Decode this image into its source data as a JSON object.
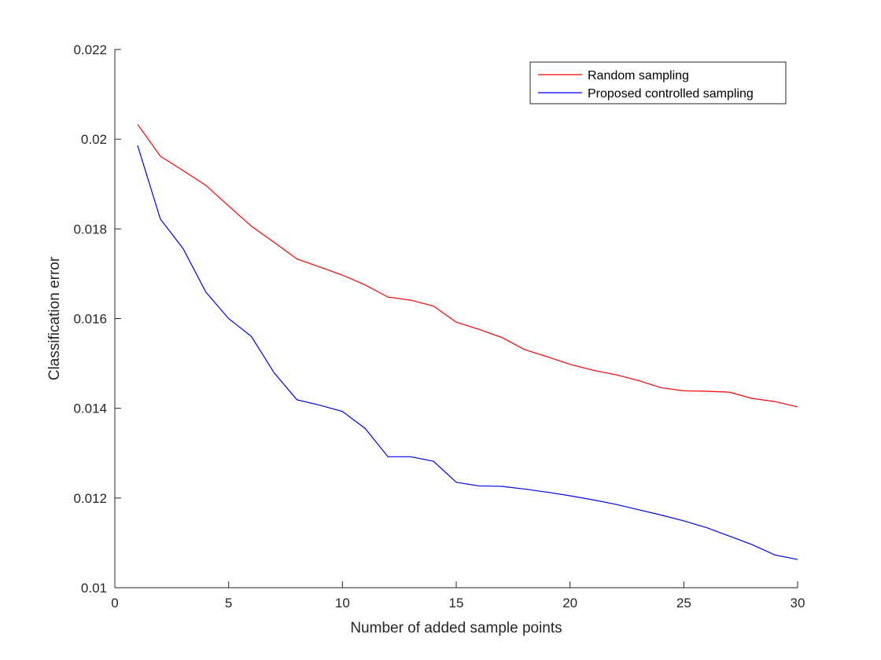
{
  "chart_data": {
    "type": "line",
    "title": "",
    "xlabel": "Number of added sample points",
    "ylabel": "Classification error",
    "xlim": [
      0,
      30
    ],
    "ylim": [
      0.01,
      0.022
    ],
    "xticks": [
      0,
      5,
      10,
      15,
      20,
      25,
      30
    ],
    "xtick_labels": [
      "0",
      "5",
      "10",
      "15",
      "20",
      "25",
      "30"
    ],
    "yticks": [
      0.01,
      0.012,
      0.014,
      0.016,
      0.018,
      0.02,
      0.022
    ],
    "ytick_labels": [
      "0.01",
      "0.012",
      "0.014",
      "0.016",
      "0.018",
      "0.02",
      "0.022"
    ],
    "grid": false,
    "legend_position": "top-right",
    "x": [
      1,
      2,
      3,
      4,
      5,
      6,
      7,
      8,
      9,
      10,
      11,
      12,
      13,
      14,
      15,
      16,
      17,
      18,
      19,
      20,
      21,
      22,
      23,
      24,
      25,
      26,
      27,
      28,
      29,
      30
    ],
    "series": [
      {
        "name": "Random sampling",
        "color": "#ff0000",
        "values": [
          0.02033,
          0.01962,
          0.0193,
          0.01897,
          0.01851,
          0.01806,
          0.0177,
          0.01733,
          0.01715,
          0.01697,
          0.01675,
          0.01648,
          0.01641,
          0.01628,
          0.01592,
          0.01576,
          0.01558,
          0.01531,
          0.01515,
          0.01498,
          0.01485,
          0.01475,
          0.01462,
          0.01446,
          0.01439,
          0.01438,
          0.01436,
          0.01422,
          0.01415,
          0.01403
        ]
      },
      {
        "name": "Proposed controlled sampling",
        "color": "#0000ff",
        "values": [
          0.01986,
          0.01822,
          0.01756,
          0.01659,
          0.016,
          0.0156,
          0.01479,
          0.01419,
          0.01407,
          0.01393,
          0.01355,
          0.01292,
          0.01292,
          0.01282,
          0.01235,
          0.01227,
          0.01226,
          0.0122,
          0.01213,
          0.01205,
          0.01196,
          0.01186,
          0.01174,
          0.01162,
          0.01149,
          0.01134,
          0.01115,
          0.01096,
          0.01073,
          0.01063
        ]
      }
    ]
  }
}
